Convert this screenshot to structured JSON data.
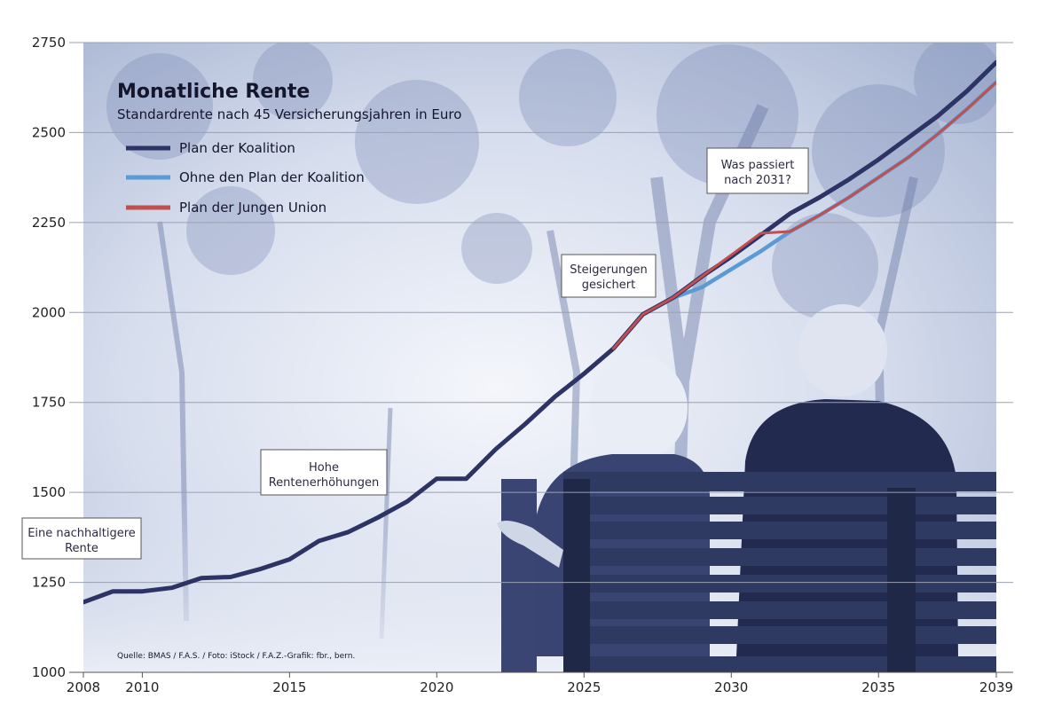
{
  "chart_data": {
    "type": "line",
    "title": "Monatliche Rente",
    "subtitle": "Standardrente nach 45 Versicherungsjahren in Euro",
    "source": "Quelle: BMAS / F.A.S. / Foto: iStock / F.A.Z.-Grafik: fbr., bern.",
    "xlim": [
      2008,
      2039
    ],
    "ylim": [
      1000,
      2750
    ],
    "x_ticks": [
      2008,
      2010,
      2015,
      2020,
      2025,
      2030,
      2035,
      2039
    ],
    "y_ticks": [
      1000,
      1250,
      1500,
      1750,
      2000,
      2250,
      2500,
      2750
    ],
    "grid": "horizontal",
    "legend_position": "top-left",
    "series": [
      {
        "name": "Plan der Koalition",
        "color": "#2e3366",
        "x": [
          2008,
          2009,
          2010,
          2011,
          2012,
          2013,
          2014,
          2015,
          2016,
          2017,
          2018,
          2019,
          2020,
          2021,
          2022,
          2023,
          2024,
          2025,
          2026,
          2027,
          2028,
          2029,
          2030,
          2031,
          2032,
          2033,
          2034,
          2035,
          2036,
          2037,
          2038,
          2039
        ],
        "values": [
          1195,
          1225,
          1225,
          1235,
          1262,
          1265,
          1287,
          1314,
          1365,
          1390,
          1430,
          1475,
          1538,
          1538,
          1620,
          1690,
          1765,
          1830,
          1900,
          1995,
          2040,
          2100,
          2155,
          2215,
          2275,
          2320,
          2370,
          2425,
          2485,
          2545,
          2615,
          2695
        ]
      },
      {
        "name": "Ohne den Plan der Koalition",
        "color": "#5b9bd5",
        "x": [
          2026,
          2027,
          2028,
          2029,
          2030,
          2031,
          2032,
          2033,
          2034,
          2035,
          2036,
          2037,
          2038,
          2039
        ],
        "values": [
          1900,
          1995,
          2040,
          2070,
          2120,
          2170,
          2225,
          2270,
          2320,
          2375,
          2430,
          2495,
          2565,
          2640
        ]
      },
      {
        "name": "Plan der Jungen Union",
        "color": "#c0504d",
        "x": [
          2026,
          2027,
          2028,
          2029,
          2030,
          2031,
          2032,
          2033,
          2034,
          2035,
          2036,
          2037,
          2038,
          2039
        ],
        "values": [
          1900,
          1995,
          2040,
          2100,
          2160,
          2220,
          2225,
          2270,
          2320,
          2375,
          2430,
          2495,
          2565,
          2640
        ]
      }
    ],
    "annotations": [
      {
        "id": "nachhaltig",
        "lines": [
          "Eine nachhaltigere",
          "Rente"
        ]
      },
      {
        "id": "erhoehung",
        "lines": [
          "Hohe",
          "Rentenerhöhungen"
        ]
      },
      {
        "id": "steigerung",
        "lines": [
          "Steigerungen",
          "gesichert"
        ]
      },
      {
        "id": "passiert",
        "lines": [
          "Was passiert",
          "nach 2031?"
        ]
      }
    ]
  },
  "colors": {
    "background_photo_tint": "#c9d3e8",
    "bench": "#2f3a63",
    "grid": "#9aa0b0"
  }
}
